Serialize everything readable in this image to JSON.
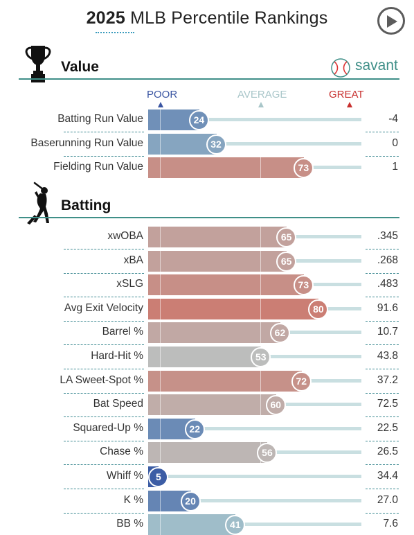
{
  "header": {
    "year": "2025",
    "title_rest": "MLB Percentile Rankings"
  },
  "play_button": {
    "icon": "play-icon"
  },
  "sections": {
    "value": {
      "title": "Value",
      "icon": "trophy-icon"
    },
    "batting": {
      "title": "Batting",
      "icon": "batter-icon"
    }
  },
  "brand": {
    "label": "savant",
    "icon": "baseball-icon"
  },
  "scale_labels": {
    "poor": "POOR",
    "average": "AVERAGE",
    "great": "GREAT"
  },
  "colors": {
    "poor_label": "#3a55a2",
    "average_label": "#a9c6c9",
    "great_label": "#c8302f",
    "section_line": "#3f8f88",
    "track": "#c9dfe1"
  },
  "chart_data": {
    "type": "bar",
    "orientation": "horizontal",
    "value_axis": {
      "min": 0,
      "max": 100,
      "label": "percentile"
    },
    "groups": [
      {
        "name": "Value",
        "rows": [
          {
            "metric": "Batting Run Value",
            "percentile": 24,
            "value": "-4"
          },
          {
            "metric": "Baserunning Run Value",
            "percentile": 32,
            "value": "0"
          },
          {
            "metric": "Fielding Run Value",
            "percentile": 73,
            "value": "1"
          }
        ]
      },
      {
        "name": "Batting",
        "rows": [
          {
            "metric": "xwOBA",
            "percentile": 65,
            "value": ".345"
          },
          {
            "metric": "xBA",
            "percentile": 65,
            "value": ".268"
          },
          {
            "metric": "xSLG",
            "percentile": 73,
            "value": ".483"
          },
          {
            "metric": "Avg Exit Velocity",
            "percentile": 80,
            "value": "91.6"
          },
          {
            "metric": "Barrel %",
            "percentile": 62,
            "value": "10.7"
          },
          {
            "metric": "Hard-Hit %",
            "percentile": 53,
            "value": "43.8"
          },
          {
            "metric": "LA Sweet-Spot %",
            "percentile": 72,
            "value": "37.2"
          },
          {
            "metric": "Bat Speed",
            "percentile": 60,
            "value": "72.5"
          },
          {
            "metric": "Squared-Up %",
            "percentile": 22,
            "value": "22.5"
          },
          {
            "metric": "Chase %",
            "percentile": 56,
            "value": "26.5"
          },
          {
            "metric": "Whiff %",
            "percentile": 5,
            "value": "34.4"
          },
          {
            "metric": "K %",
            "percentile": 20,
            "value": "27.0"
          },
          {
            "metric": "BB %",
            "percentile": 41,
            "value": "7.6"
          }
        ]
      }
    ]
  }
}
